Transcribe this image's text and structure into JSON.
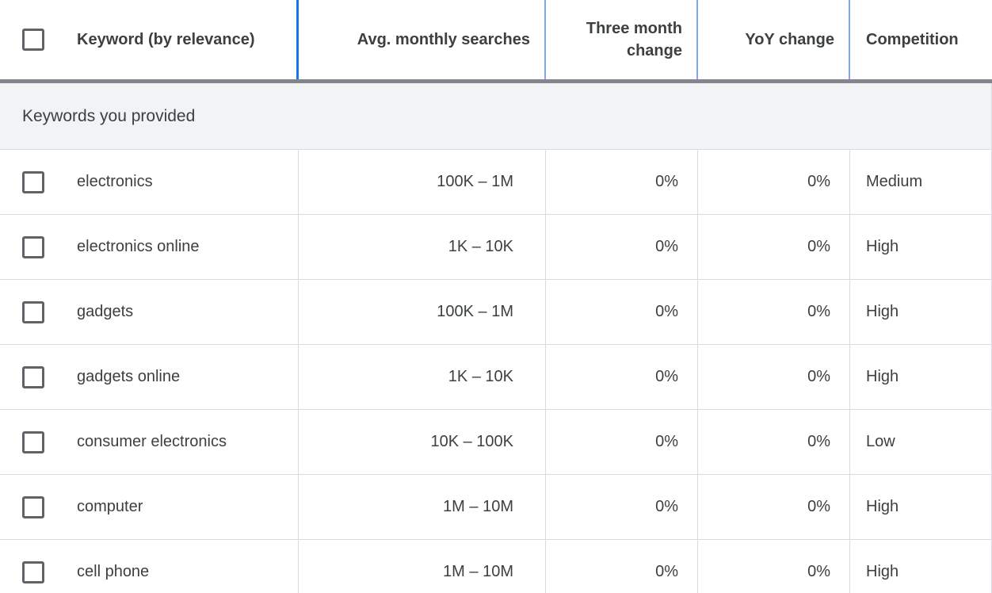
{
  "table": {
    "header": {
      "columns": [
        {
          "id": "keyword",
          "label": "Keyword (by relevance)"
        },
        {
          "id": "avg_monthly_searches",
          "label": "Avg. monthly searches"
        },
        {
          "id": "three_month_change",
          "label": "Three month change"
        },
        {
          "id": "yoy_change",
          "label": "YoY change"
        },
        {
          "id": "competition",
          "label": "Competition"
        }
      ],
      "select_all_checkbox_checked": false
    },
    "section_label": "Keywords you provided",
    "rows": [
      {
        "checked": false,
        "keyword": "electronics",
        "avg_monthly_searches": "100K – 1M",
        "three_month_change": "0%",
        "yoy_change": "0%",
        "competition": "Medium"
      },
      {
        "checked": false,
        "keyword": "electronics online",
        "avg_monthly_searches": "1K – 10K",
        "three_month_change": "0%",
        "yoy_change": "0%",
        "competition": "High"
      },
      {
        "checked": false,
        "keyword": "gadgets",
        "avg_monthly_searches": "100K – 1M",
        "three_month_change": "0%",
        "yoy_change": "0%",
        "competition": "High"
      },
      {
        "checked": false,
        "keyword": "gadgets online",
        "avg_monthly_searches": "1K – 10K",
        "three_month_change": "0%",
        "yoy_change": "0%",
        "competition": "High"
      },
      {
        "checked": false,
        "keyword": "consumer electronics",
        "avg_monthly_searches": "10K – 100K",
        "three_month_change": "0%",
        "yoy_change": "0%",
        "competition": "Low"
      },
      {
        "checked": false,
        "keyword": "computer",
        "avg_monthly_searches": "1M – 10M",
        "three_month_change": "0%",
        "yoy_change": "0%",
        "competition": "High"
      },
      {
        "checked": false,
        "keyword": "cell phone",
        "avg_monthly_searches": "1M – 10M",
        "three_month_change": "0%",
        "yoy_change": "0%",
        "competition": "High"
      }
    ]
  },
  "colors": {
    "sorted_column_divider": "#1a73e8",
    "header_column_divider": "#7baaf7",
    "header_bottom_bar": "#80868b",
    "section_row_background": "#f1f3f4",
    "text": "#3c4043",
    "row_divider": "#dadce0",
    "checkbox_border": "#5f6368"
  }
}
